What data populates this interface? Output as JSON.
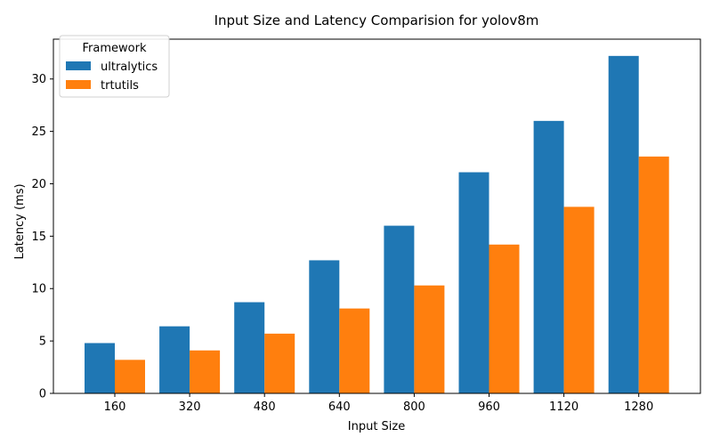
{
  "chart_data": {
    "type": "bar",
    "title": "Input Size and Latency Comparision for yolov8m",
    "xlabel": "Input Size",
    "ylabel": "Latency (ms)",
    "categories": [
      "160",
      "320",
      "480",
      "640",
      "800",
      "960",
      "1120",
      "1280"
    ],
    "series": [
      {
        "name": "ultralytics",
        "color": "#1f77b4",
        "values": [
          4.8,
          6.4,
          8.7,
          12.7,
          16.0,
          21.1,
          26.0,
          32.2
        ]
      },
      {
        "name": "trtutils",
        "color": "#ff7f0e",
        "values": [
          3.2,
          4.1,
          5.7,
          8.1,
          10.3,
          14.2,
          17.8,
          22.6
        ]
      }
    ],
    "ylim": [
      0,
      33.8
    ],
    "yticks": [
      0,
      5,
      10,
      15,
      20,
      25,
      30
    ],
    "legend": {
      "title": "Framework",
      "placement": "top-left"
    },
    "grid": false
  }
}
